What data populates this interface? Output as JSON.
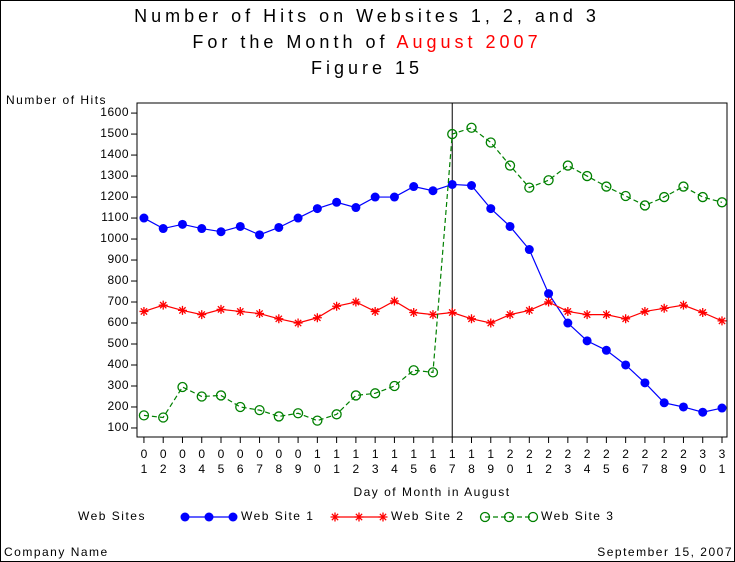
{
  "chart_data": {
    "type": "line",
    "title": "Number of Hits on Websites 1, 2, and 3",
    "subtitle_prefix": "For the Month of",
    "subtitle_highlight": "August 2007",
    "subtitle_highlight_color": "#ff0000",
    "figure_label": "Figure 15",
    "y_label": "Number of Hits",
    "x_label": "Day of Month in August",
    "legend_title": "Web Sites",
    "footer_left": "Company Name",
    "footer_right": "September 15, 2007",
    "reference_line_x": 17,
    "x": [
      1,
      2,
      3,
      4,
      5,
      6,
      7,
      8,
      9,
      10,
      11,
      12,
      13,
      14,
      15,
      16,
      17,
      18,
      19,
      20,
      21,
      22,
      23,
      24,
      25,
      26,
      27,
      28,
      29,
      30,
      31
    ],
    "xlim": [
      0.64,
      31.26
    ],
    "xticks": [
      {
        "value": 1,
        "label": "01"
      },
      {
        "value": 2,
        "label": "02"
      },
      {
        "value": 3,
        "label": "03"
      },
      {
        "value": 4,
        "label": "04"
      },
      {
        "value": 5,
        "label": "05"
      },
      {
        "value": 6,
        "label": "06"
      },
      {
        "value": 7,
        "label": "07"
      },
      {
        "value": 8,
        "label": "08"
      },
      {
        "value": 9,
        "label": "09"
      },
      {
        "value": 10,
        "label": "10"
      },
      {
        "value": 11,
        "label": "11"
      },
      {
        "value": 12,
        "label": "12"
      },
      {
        "value": 13,
        "label": "13"
      },
      {
        "value": 14,
        "label": "14"
      },
      {
        "value": 15,
        "label": "15"
      },
      {
        "value": 16,
        "label": "16"
      },
      {
        "value": 17,
        "label": "17"
      },
      {
        "value": 18,
        "label": "18"
      },
      {
        "value": 19,
        "label": "19"
      },
      {
        "value": 20,
        "label": "20"
      },
      {
        "value": 21,
        "label": "21"
      },
      {
        "value": 22,
        "label": "22"
      },
      {
        "value": 23,
        "label": "23"
      },
      {
        "value": 24,
        "label": "24"
      },
      {
        "value": 25,
        "label": "25"
      },
      {
        "value": 26,
        "label": "26"
      },
      {
        "value": 27,
        "label": "27"
      },
      {
        "value": 28,
        "label": "28"
      },
      {
        "value": 29,
        "label": "29"
      },
      {
        "value": 30,
        "label": "30"
      },
      {
        "value": 31,
        "label": "31"
      }
    ],
    "ylim": [
      57,
      1648
    ],
    "yticks": [
      100,
      200,
      300,
      400,
      500,
      600,
      700,
      800,
      900,
      1000,
      1100,
      1200,
      1300,
      1400,
      1500,
      1600
    ],
    "series": [
      {
        "name": "Web Site 1",
        "color": "#0000ff",
        "marker": "dot",
        "dashed": false,
        "values": [
          1100,
          1050,
          1070,
          1050,
          1035,
          1060,
          1020,
          1055,
          1100,
          1145,
          1175,
          1150,
          1200,
          1200,
          1250,
          1230,
          1260,
          1255,
          1145,
          1060,
          950,
          740,
          600,
          515,
          470,
          400,
          315,
          220,
          200,
          175,
          195
        ]
      },
      {
        "name": "Web Site 2",
        "color": "#ff0000",
        "marker": "star",
        "dashed": false,
        "values": [
          655,
          685,
          660,
          640,
          665,
          655,
          645,
          620,
          600,
          625,
          680,
          700,
          655,
          705,
          650,
          640,
          650,
          620,
          600,
          640,
          660,
          700,
          655,
          640,
          640,
          620,
          655,
          670,
          685,
          650,
          610
        ]
      },
      {
        "name": "Web Site 3",
        "color": "#008000",
        "marker": "circle",
        "dashed": true,
        "values": [
          160,
          150,
          295,
          250,
          255,
          200,
          185,
          155,
          170,
          135,
          165,
          255,
          265,
          300,
          375,
          365,
          1500,
          1530,
          1460,
          1350,
          1245,
          1280,
          1350,
          1300,
          1250,
          1205,
          1160,
          1200,
          1250,
          1200,
          1175
        ]
      }
    ]
  }
}
